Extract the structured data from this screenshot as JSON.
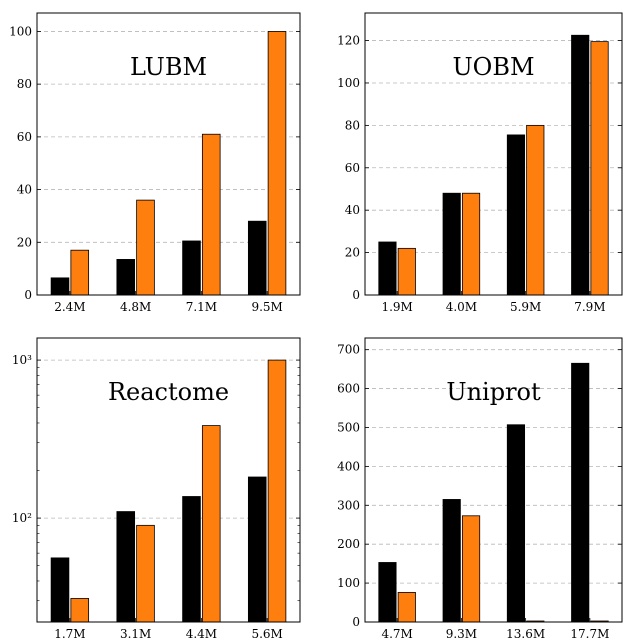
{
  "chart_data": [
    {
      "type": "bar",
      "title": "LUBM",
      "categories": [
        "2.4M",
        "4.8M",
        "7.1M",
        "9.5M"
      ],
      "series": [
        {
          "color": "#000000",
          "values": [
            6.5,
            13.5,
            20.5,
            28
          ]
        },
        {
          "color": "#ff7f0e",
          "values": [
            17,
            36,
            61,
            100
          ]
        }
      ],
      "ylim": [
        0,
        107
      ],
      "yscale": "linear",
      "yticks": [
        0,
        20,
        40,
        60,
        80,
        100
      ],
      "ytick_labels": [
        "0",
        "20",
        "40",
        "60",
        "80",
        "100"
      ],
      "grid": true
    },
    {
      "type": "bar",
      "title": "UOBM",
      "categories": [
        "1.9M",
        "4.0M",
        "5.9M",
        "7.9M"
      ],
      "series": [
        {
          "color": "#000000",
          "values": [
            25,
            48,
            75.5,
            122.5
          ]
        },
        {
          "color": "#ff7f0e",
          "values": [
            22,
            48,
            80,
            119.5
          ]
        }
      ],
      "ylim": [
        0,
        133
      ],
      "yscale": "linear",
      "yticks": [
        0,
        20,
        40,
        60,
        80,
        100,
        120
      ],
      "ytick_labels": [
        "0",
        "20",
        "40",
        "60",
        "80",
        "100",
        "120"
      ],
      "grid": true
    },
    {
      "type": "bar",
      "title": "Reactome",
      "categories": [
        "1.7M",
        "3.1M",
        "4.4M",
        "5.6M"
      ],
      "series": [
        {
          "color": "#000000",
          "values": [
            56,
            110,
            137,
            182
          ]
        },
        {
          "color": "#ff7f0e",
          "values": [
            31,
            90,
            385,
            1000
          ]
        }
      ],
      "ylim": [
        22,
        1380
      ],
      "yscale": "log",
      "yticks": [
        100,
        1000
      ],
      "ytick_labels": [
        "10²",
        "10³"
      ],
      "grid": true
    },
    {
      "type": "bar",
      "title": "Uniprot",
      "categories": [
        "4.7M",
        "9.3M",
        "13.6M",
        "17.7M"
      ],
      "series": [
        {
          "color": "#000000",
          "values": [
            153,
            315,
            507,
            665
          ]
        },
        {
          "color": "#ff7f0e",
          "values": [
            76,
            273,
            0,
            0
          ]
        }
      ],
      "ylim": [
        0,
        730
      ],
      "yscale": "linear",
      "yticks": [
        0,
        100,
        200,
        300,
        400,
        500,
        600,
        700
      ],
      "ytick_labels": [
        "0",
        "100",
        "200",
        "300",
        "400",
        "500",
        "600",
        "700"
      ],
      "grid": true
    }
  ]
}
